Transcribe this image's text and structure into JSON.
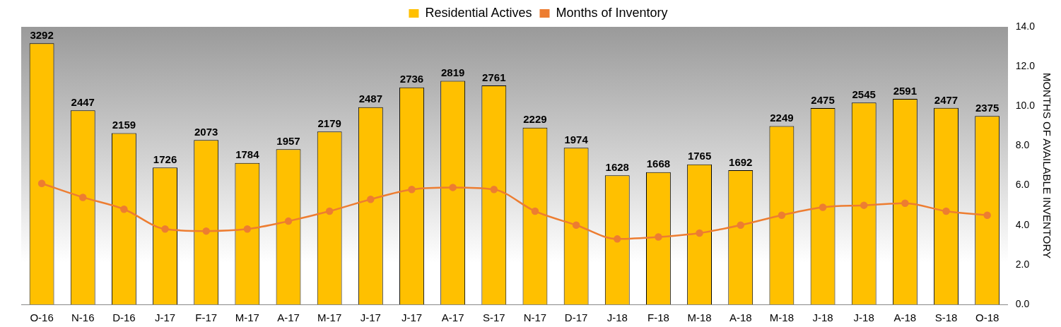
{
  "chart_data": {
    "type": "bar",
    "categories": [
      "O-16",
      "N-16",
      "D-16",
      "J-17",
      "F-17",
      "M-17",
      "A-17",
      "M-17",
      "J-17",
      "J-17",
      "A-17",
      "S-17",
      "N-17",
      "D-17",
      "J-18",
      "F-18",
      "M-18",
      "A-18",
      "M-18",
      "J-18",
      "J-18",
      "A-18",
      "S-18",
      "O-18"
    ],
    "series": [
      {
        "name": "Residential Actives",
        "color": "#ffc000",
        "values": [
          3292,
          2447,
          2159,
          1726,
          2073,
          1784,
          1957,
          2179,
          2487,
          2736,
          2819,
          2761,
          2229,
          1974,
          1628,
          1668,
          1765,
          1692,
          2249,
          2475,
          2545,
          2591,
          2477,
          2375
        ],
        "value_labels": [
          "3292",
          "2447",
          "2159",
          "1726",
          "2073",
          "1784",
          "1957",
          "2179",
          "2487",
          "2736",
          "2819",
          "2761",
          "2229",
          "1974",
          "1628",
          "1668",
          "1765",
          "1692",
          "2249",
          "2475",
          "2545",
          "2591",
          "2477",
          "2375"
        ]
      },
      {
        "name": "Months of Inventory",
        "type": "line",
        "axis": "y2",
        "color": "#ed7d31",
        "values": [
          6.1,
          5.4,
          4.8,
          3.8,
          3.7,
          3.8,
          4.2,
          4.7,
          5.3,
          5.8,
          5.9,
          5.8,
          4.7,
          4.0,
          3.3,
          3.4,
          3.6,
          4.0,
          4.5,
          4.9,
          5.0,
          5.1,
          4.7,
          4.5
        ]
      }
    ],
    "y2label": "MONTHS OF AVAILABLE INVENTORY",
    "y2lim": [
      0,
      14
    ],
    "y2ticks": [
      {
        "value": 0,
        "label": "0.0"
      },
      {
        "value": 2,
        "label": "2.0"
      },
      {
        "value": 4,
        "label": "4.0"
      },
      {
        "value": 6,
        "label": "6.0"
      },
      {
        "value": 8,
        "label": "8.0"
      },
      {
        "value": 10,
        "label": "10.0"
      },
      {
        "value": 12,
        "label": "12.0"
      },
      {
        "value": 14,
        "label": "14.0"
      }
    ],
    "marker": "circle",
    "line_style": "solid",
    "grid": false,
    "legend": "top"
  }
}
